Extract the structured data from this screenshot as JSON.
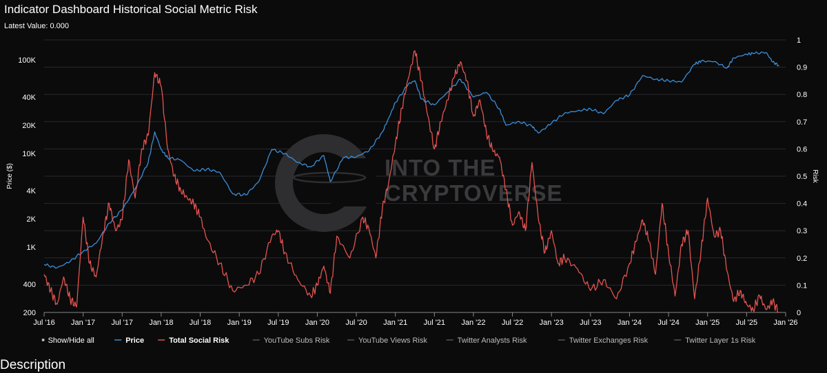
{
  "header": {
    "title": "Indicator Dashboard Historical Social Metric Risk",
    "latest_value": "Latest Value: 0.000"
  },
  "section_heading": "Description",
  "chart_data": {
    "type": "line",
    "title": "Indicator Dashboard Historical Social Metric Risk",
    "ylabel_left": "Price ($)",
    "ylabel_right": "Risk",
    "y_left_scale": "log",
    "y_left_ticks": [
      {
        "value": 200,
        "label": "200"
      },
      {
        "value": 400,
        "label": "400"
      },
      {
        "value": 1000,
        "label": "1K"
      },
      {
        "value": 2000,
        "label": "2K"
      },
      {
        "value": 4000,
        "label": "4K"
      },
      {
        "value": 10000,
        "label": "10K"
      },
      {
        "value": 20000,
        "label": "20K"
      },
      {
        "value": 40000,
        "label": "40K"
      },
      {
        "value": 100000,
        "label": "100K"
      }
    ],
    "y_right_ticks": [
      {
        "value": 0,
        "label": "0"
      },
      {
        "value": 0.1,
        "label": "0.1"
      },
      {
        "value": 0.2,
        "label": "0.2"
      },
      {
        "value": 0.3,
        "label": "0.3"
      },
      {
        "value": 0.4,
        "label": "0.4"
      },
      {
        "value": 0.5,
        "label": "0.5"
      },
      {
        "value": 0.6,
        "label": "0.6"
      },
      {
        "value": 0.7,
        "label": "0.7"
      },
      {
        "value": 0.8,
        "label": "0.8"
      },
      {
        "value": 0.9,
        "label": "0.9"
      },
      {
        "value": 1,
        "label": "1"
      }
    ],
    "x_ticks": [
      "Jul '16",
      "Jan '17",
      "Jul '17",
      "Jan '18",
      "Jul '18",
      "Jan '19",
      "Jul '19",
      "Jan '20",
      "Jul '20",
      "Jan '21",
      "Jul '21",
      "Jan '22",
      "Jul '22",
      "Jan '23",
      "Jul '23",
      "Jan '24",
      "Jul '24",
      "Jan '25",
      "Jul '25",
      "Jan '26"
    ],
    "x_range": [
      "2016-07",
      "2026-01"
    ],
    "grid": true,
    "legend_position": "bottom",
    "legend": [
      {
        "label": "Show/Hide all",
        "color": "#bbbbbb",
        "marker": "dot",
        "active": true
      },
      {
        "label": "Price",
        "color": "#3b8fd9",
        "marker": "line",
        "active": true
      },
      {
        "label": "Total Social Risk",
        "color": "#e5544f",
        "marker": "line",
        "active": true
      },
      {
        "label": "YouTube Subs Risk",
        "color": "#555555",
        "marker": "line",
        "active": false
      },
      {
        "label": "YouTube Views Risk",
        "color": "#555555",
        "marker": "line",
        "active": false
      },
      {
        "label": "Twitter Analysts Risk",
        "color": "#555555",
        "marker": "line",
        "active": false
      },
      {
        "label": "Twitter Exchanges Risk",
        "color": "#555555",
        "marker": "line",
        "active": false
      },
      {
        "label": "Twitter Layer 1s Risk",
        "color": "#555555",
        "marker": "line",
        "active": false
      }
    ],
    "series": [
      {
        "name": "Price",
        "axis": "left",
        "color": "#3b8fd9",
        "x": [
          "2016-07",
          "2016-09",
          "2016-11",
          "2017-01",
          "2017-03",
          "2017-05",
          "2017-07",
          "2017-09",
          "2017-11",
          "2017-12",
          "2018-01",
          "2018-02",
          "2018-04",
          "2018-06",
          "2018-08",
          "2018-10",
          "2018-12",
          "2019-02",
          "2019-04",
          "2019-06",
          "2019-08",
          "2019-10",
          "2019-12",
          "2020-02",
          "2020-03",
          "2020-05",
          "2020-07",
          "2020-09",
          "2020-11",
          "2020-12",
          "2021-01",
          "2021-03",
          "2021-04",
          "2021-05",
          "2021-07",
          "2021-09",
          "2021-11",
          "2022-01",
          "2022-03",
          "2022-05",
          "2022-06",
          "2022-08",
          "2022-10",
          "2022-11",
          "2023-01",
          "2023-03",
          "2023-05",
          "2023-07",
          "2023-09",
          "2023-11",
          "2024-01",
          "2024-03",
          "2024-05",
          "2024-07",
          "2024-09",
          "2024-11",
          "2024-12",
          "2025-02",
          "2025-04",
          "2025-05",
          "2025-07",
          "2025-08",
          "2025-10",
          "2025-11",
          "2025-12"
        ],
        "values": [
          650,
          600,
          700,
          900,
          1100,
          1800,
          2500,
          4200,
          8000,
          17000,
          11000,
          9000,
          8500,
          6500,
          6800,
          6300,
          3700,
          3600,
          5000,
          11000,
          10000,
          8000,
          7200,
          9500,
          5000,
          9000,
          9200,
          10800,
          17000,
          24000,
          35000,
          55000,
          60000,
          38000,
          33000,
          45000,
          62000,
          40000,
          45000,
          30000,
          20000,
          22000,
          19500,
          16500,
          21000,
          27000,
          28500,
          30000,
          26500,
          37000,
          42000,
          68000,
          62000,
          60000,
          58000,
          90000,
          97000,
          96000,
          82000,
          105000,
          115000,
          117000,
          120000,
          95000,
          87000
        ]
      },
      {
        "name": "Total Social Risk",
        "axis": "right",
        "color": "#e5544f",
        "x": [
          "2016-07",
          "2016-08",
          "2016-09",
          "2016-10",
          "2016-11",
          "2016-12",
          "2017-01",
          "2017-02",
          "2017-03",
          "2017-04",
          "2017-05",
          "2017-06",
          "2017-07",
          "2017-08",
          "2017-09",
          "2017-10",
          "2017-11",
          "2017-12",
          "2018-01",
          "2018-02",
          "2018-03",
          "2018-04",
          "2018-05",
          "2018-06",
          "2018-07",
          "2018-08",
          "2018-10",
          "2018-12",
          "2019-02",
          "2019-04",
          "2019-06",
          "2019-07",
          "2019-08",
          "2019-10",
          "2019-12",
          "2020-01",
          "2020-02",
          "2020-03",
          "2020-04",
          "2020-06",
          "2020-08",
          "2020-09",
          "2020-10",
          "2020-11",
          "2020-12",
          "2021-01",
          "2021-02",
          "2021-03",
          "2021-04",
          "2021-05",
          "2021-06",
          "2021-07",
          "2021-08",
          "2021-09",
          "2021-10",
          "2021-11",
          "2021-12",
          "2022-01",
          "2022-02",
          "2022-03",
          "2022-04",
          "2022-05",
          "2022-06",
          "2022-07",
          "2022-08",
          "2022-09",
          "2022-10",
          "2022-11",
          "2022-12",
          "2023-01",
          "2023-02",
          "2023-03",
          "2023-05",
          "2023-07",
          "2023-09",
          "2023-11",
          "2024-01",
          "2024-02",
          "2024-03",
          "2024-04",
          "2024-05",
          "2024-06",
          "2024-07",
          "2024-08",
          "2024-09",
          "2024-10",
          "2024-11",
          "2024-12",
          "2025-01",
          "2025-02",
          "2025-03",
          "2025-04",
          "2025-05",
          "2025-06",
          "2025-07",
          "2025-08",
          "2025-09",
          "2025-10",
          "2025-11",
          "2025-12"
        ],
        "values": [
          0.14,
          0.08,
          0.03,
          0.13,
          0.05,
          0.02,
          0.35,
          0.18,
          0.13,
          0.28,
          0.4,
          0.3,
          0.34,
          0.56,
          0.42,
          0.6,
          0.65,
          0.88,
          0.83,
          0.6,
          0.5,
          0.45,
          0.42,
          0.4,
          0.35,
          0.27,
          0.18,
          0.08,
          0.1,
          0.14,
          0.28,
          0.3,
          0.22,
          0.12,
          0.06,
          0.1,
          0.17,
          0.07,
          0.28,
          0.2,
          0.35,
          0.3,
          0.2,
          0.38,
          0.48,
          0.62,
          0.75,
          0.86,
          0.96,
          0.85,
          0.72,
          0.6,
          0.7,
          0.78,
          0.86,
          0.92,
          0.85,
          0.72,
          0.78,
          0.66,
          0.59,
          0.57,
          0.45,
          0.32,
          0.37,
          0.3,
          0.55,
          0.34,
          0.22,
          0.3,
          0.18,
          0.2,
          0.16,
          0.08,
          0.12,
          0.05,
          0.18,
          0.26,
          0.34,
          0.26,
          0.14,
          0.4,
          0.22,
          0.06,
          0.25,
          0.3,
          0.05,
          0.23,
          0.42,
          0.28,
          0.3,
          0.15,
          0.04,
          0.08,
          0.03,
          0.01,
          0.06,
          0.01,
          0.04,
          0.0
        ]
      }
    ]
  }
}
